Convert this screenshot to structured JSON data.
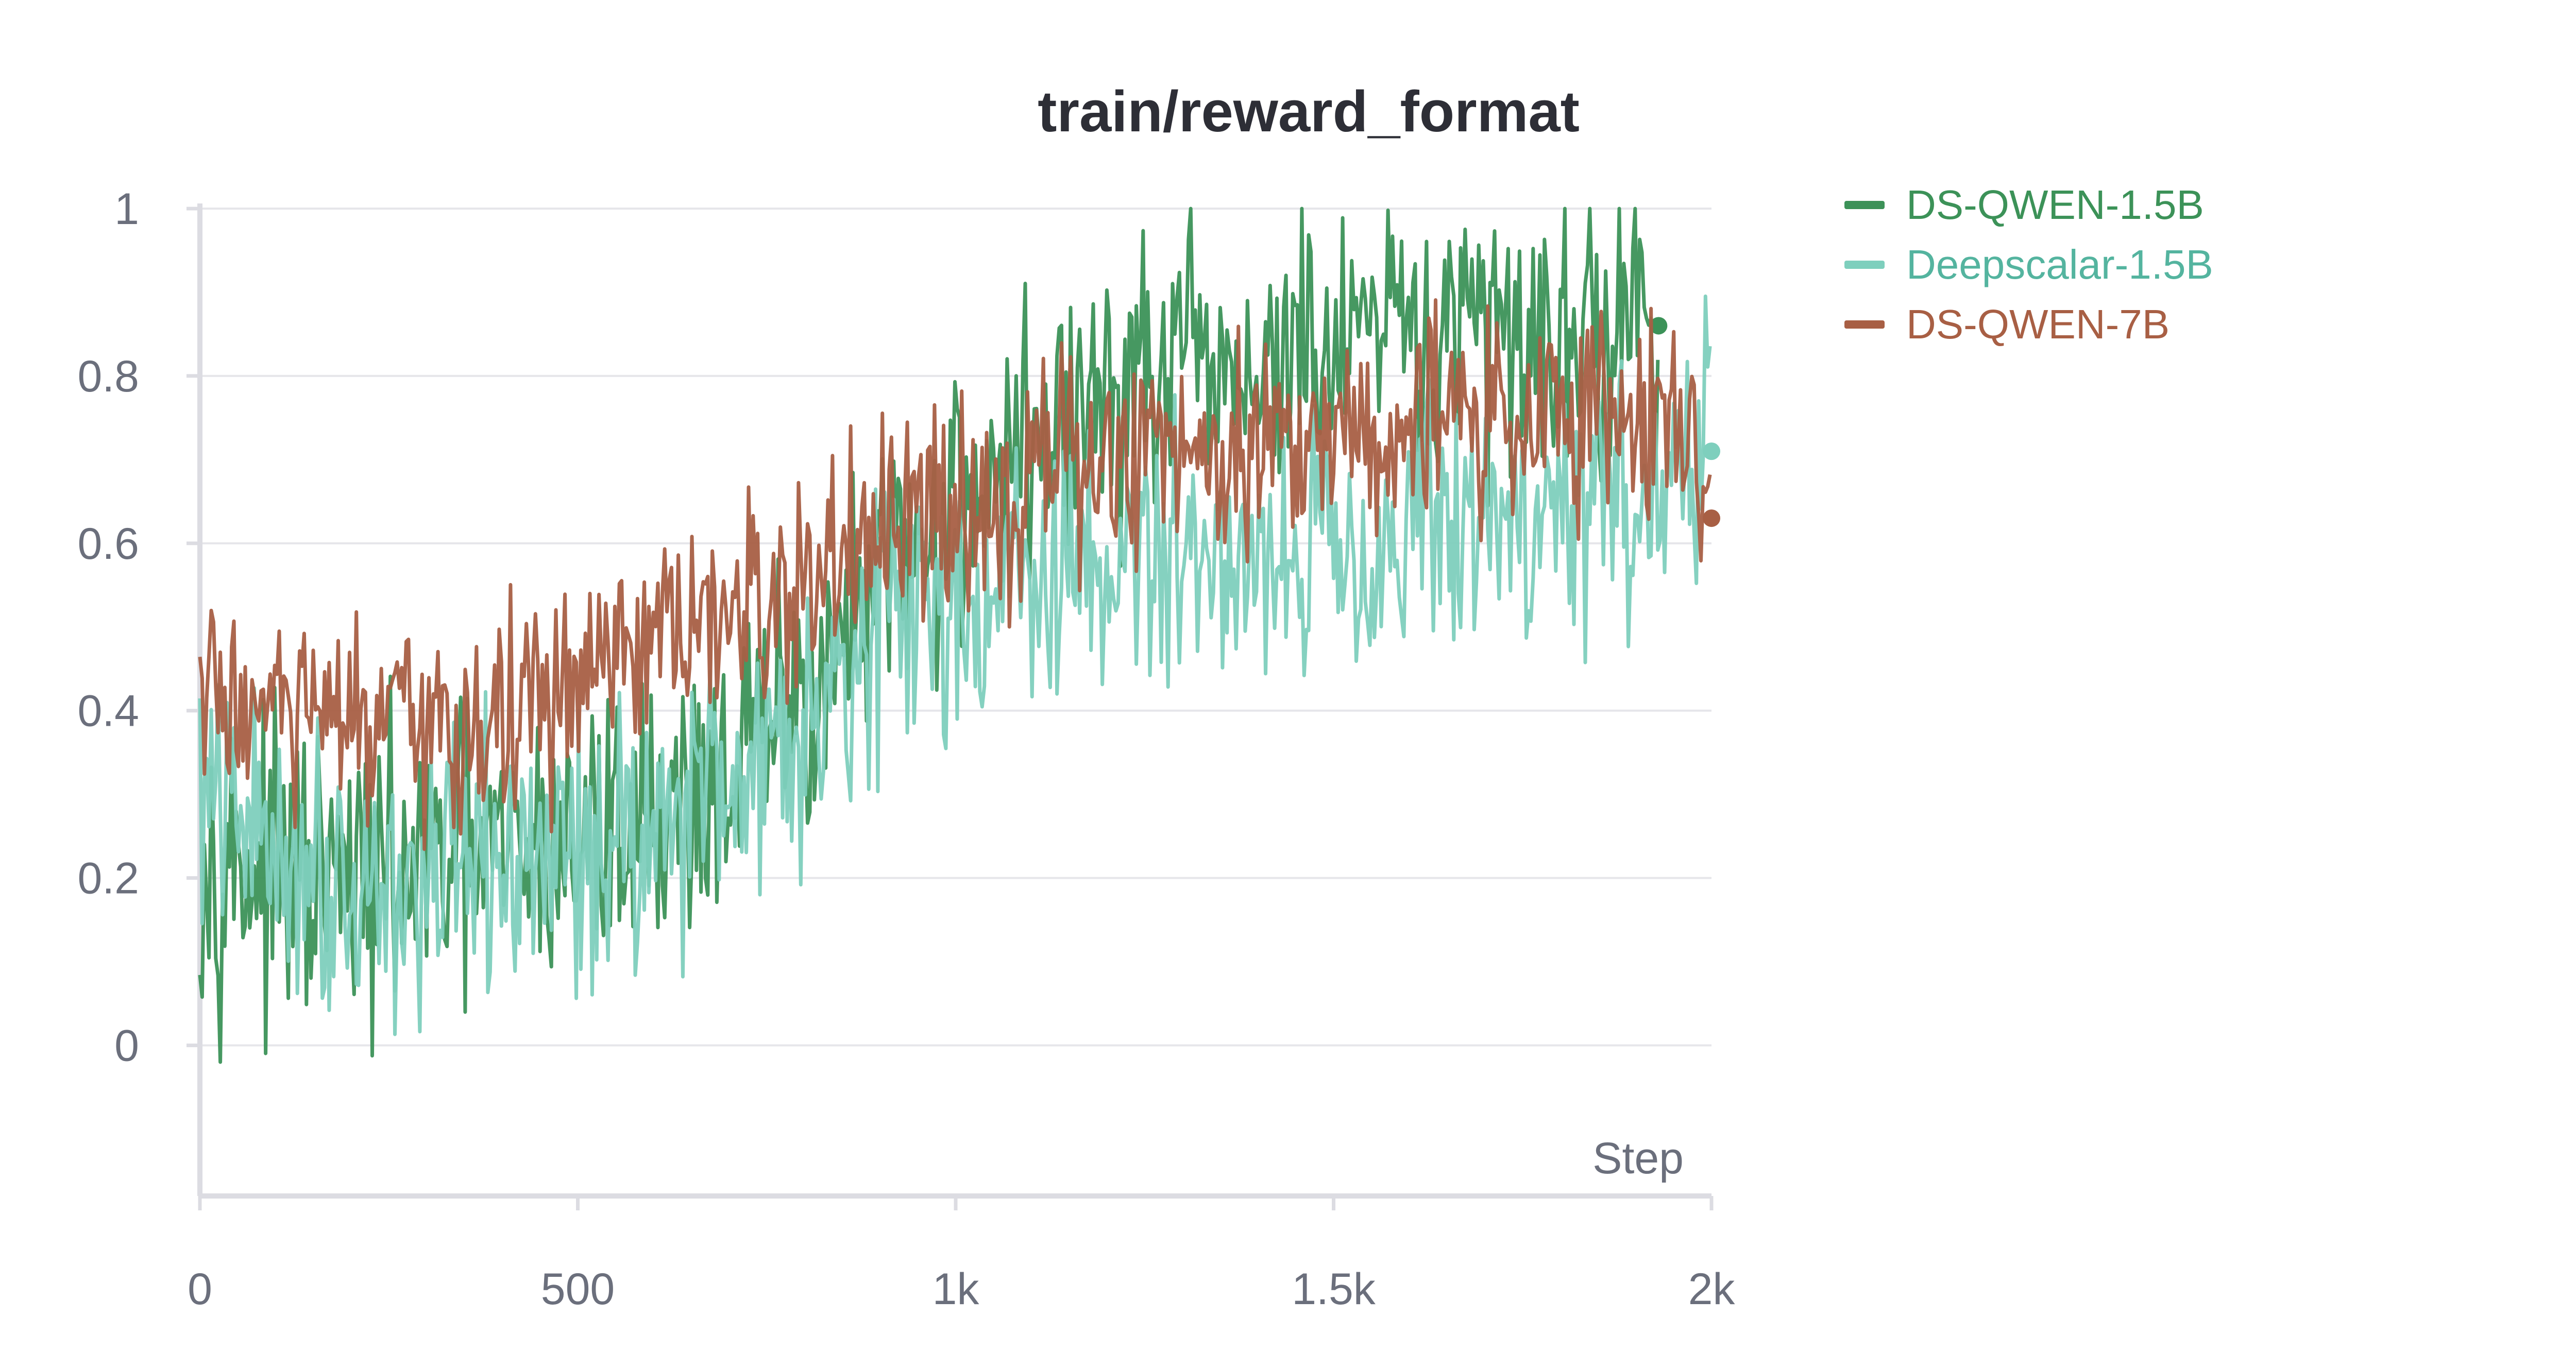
{
  "chart_data": {
    "type": "line",
    "title": "train/reward_format",
    "xlabel": "Step",
    "ylabel": "",
    "xlim": [
      0,
      2000
    ],
    "ylim": [
      -0.18,
      1.0
    ],
    "x_ticks": [
      {
        "value": 0,
        "label": "0"
      },
      {
        "value": 500,
        "label": "500"
      },
      {
        "value": 1000,
        "label": "1k"
      },
      {
        "value": 1500,
        "label": "1.5k"
      },
      {
        "value": 2000,
        "label": "2k"
      }
    ],
    "y_ticks": [
      {
        "value": 0,
        "label": "0"
      },
      {
        "value": 0.2,
        "label": "0.2"
      },
      {
        "value": 0.4,
        "label": "0.4"
      },
      {
        "value": 0.6,
        "label": "0.6"
      },
      {
        "value": 0.8,
        "label": "0.8"
      },
      {
        "value": 1.0,
        "label": "1"
      }
    ],
    "grid": true,
    "legend": "right",
    "series": [
      {
        "name": "DS-QWEN-1.5B",
        "color": "#3c9258",
        "x": [
          0,
          50,
          100,
          150,
          200,
          250,
          300,
          350,
          400,
          450,
          500,
          550,
          600,
          650,
          700,
          750,
          800,
          850,
          900,
          950,
          1000,
          1050,
          1100,
          1150,
          1200,
          1250,
          1300,
          1350,
          1400,
          1450,
          1500,
          1550,
          1600,
          1650,
          1700,
          1750,
          1800,
          1850,
          1900,
          1930
        ],
        "y": [
          0.24,
          0.22,
          0.2,
          0.19,
          0.19,
          0.2,
          0.21,
          0.22,
          0.22,
          0.23,
          0.24,
          0.26,
          0.28,
          0.3,
          0.33,
          0.37,
          0.42,
          0.48,
          0.54,
          0.6,
          0.65,
          0.69,
          0.72,
          0.75,
          0.77,
          0.79,
          0.8,
          0.8,
          0.81,
          0.82,
          0.82,
          0.83,
          0.84,
          0.84,
          0.85,
          0.86,
          0.86,
          0.86,
          0.86,
          0.86
        ]
      },
      {
        "name": "Deepscalar-1.5B",
        "color": "#7ecfbd",
        "x": [
          0,
          50,
          100,
          150,
          200,
          250,
          300,
          350,
          400,
          450,
          500,
          550,
          600,
          650,
          700,
          750,
          800,
          850,
          900,
          950,
          1000,
          1050,
          1100,
          1150,
          1200,
          1250,
          1300,
          1350,
          1400,
          1450,
          1500,
          1550,
          1600,
          1650,
          1700,
          1750,
          1800,
          1850,
          1900,
          1950,
          2000
        ],
        "y": [
          0.3,
          0.27,
          0.24,
          0.22,
          0.2,
          0.19,
          0.19,
          0.2,
          0.21,
          0.22,
          0.23,
          0.25,
          0.27,
          0.3,
          0.33,
          0.35,
          0.4,
          0.46,
          0.5,
          0.52,
          0.53,
          0.54,
          0.55,
          0.56,
          0.57,
          0.58,
          0.58,
          0.59,
          0.59,
          0.6,
          0.6,
          0.61,
          0.61,
          0.62,
          0.63,
          0.63,
          0.64,
          0.65,
          0.66,
          0.68,
          0.71
        ]
      },
      {
        "name": "DS-QWEN-7B",
        "color": "#a85f44",
        "x": [
          0,
          50,
          100,
          150,
          200,
          250,
          300,
          350,
          400,
          450,
          500,
          550,
          600,
          650,
          700,
          750,
          800,
          850,
          900,
          950,
          1000,
          1050,
          1100,
          1150,
          1200,
          1250,
          1300,
          1350,
          1400,
          1450,
          1500,
          1550,
          1600,
          1650,
          1700,
          1750,
          1800,
          1850,
          1900,
          1950,
          2000
        ],
        "y": [
          0.42,
          0.41,
          0.4,
          0.39,
          0.38,
          0.37,
          0.37,
          0.38,
          0.39,
          0.41,
          0.43,
          0.45,
          0.47,
          0.49,
          0.51,
          0.52,
          0.55,
          0.58,
          0.6,
          0.62,
          0.64,
          0.66,
          0.68,
          0.69,
          0.7,
          0.71,
          0.72,
          0.72,
          0.73,
          0.73,
          0.74,
          0.74,
          0.74,
          0.75,
          0.75,
          0.75,
          0.76,
          0.76,
          0.76,
          0.77,
          0.63
        ]
      }
    ]
  }
}
